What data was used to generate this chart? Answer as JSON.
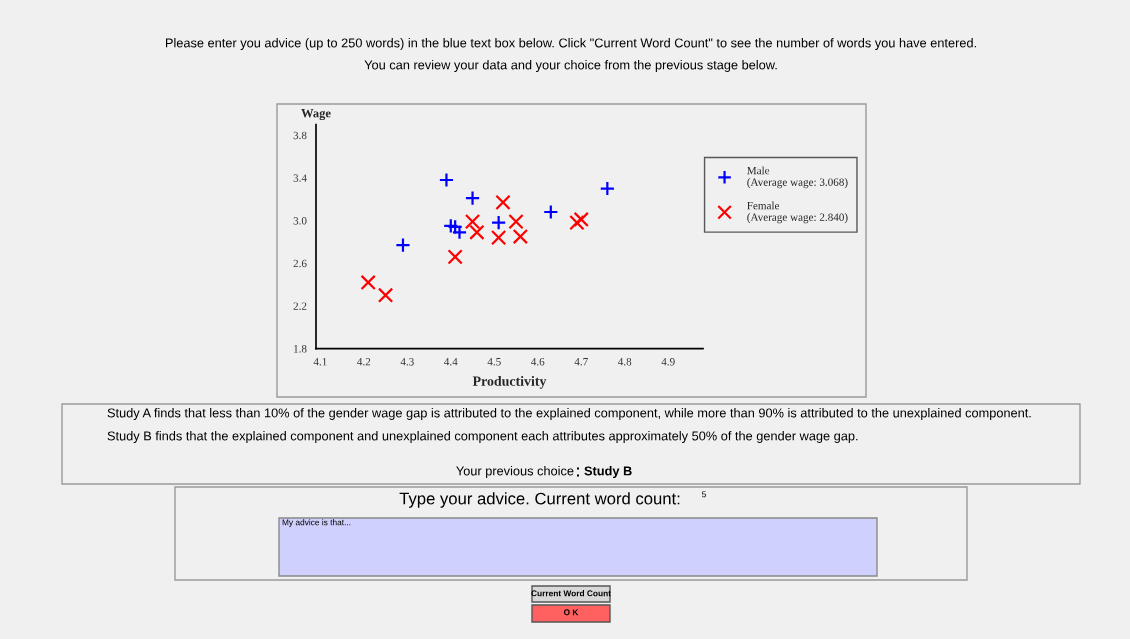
{
  "chart_data": {
    "type": "scatter",
    "xlabel": "Productivity",
    "ylabel": "Wage",
    "xlim": [
      4.09,
      4.98
    ],
    "ylim": [
      1.8,
      3.9
    ],
    "xticks": [
      4.1,
      4.2,
      4.3,
      4.4,
      4.5,
      4.6,
      4.7,
      4.8,
      4.9
    ],
    "yticks": [
      1.8,
      2.2,
      2.6,
      {
        "value": 3.0,
        "label": "3.0"
      },
      3.4,
      3.8
    ],
    "legend": "right",
    "series": [
      {
        "name": "Male\n(Average wage: 3.068)",
        "color": "#0000ff",
        "marker": "plus",
        "x": [
          4.29,
          4.39,
          4.4,
          4.41,
          4.42,
          4.45,
          4.51,
          4.63,
          4.76
        ],
        "values": [
          2.77,
          3.38,
          2.95,
          2.94,
          2.89,
          3.21,
          2.98,
          3.08,
          3.3
        ]
      },
      {
        "name": "Female\n(Average wage: 2.840)",
        "color": "#ff0000",
        "marker": "cross",
        "x": [
          4.21,
          4.25,
          4.41,
          4.45,
          4.46,
          4.51,
          4.52,
          4.55,
          4.56,
          4.69,
          4.7
        ],
        "values": [
          2.42,
          2.3,
          2.66,
          2.99,
          2.89,
          2.84,
          3.17,
          2.99,
          2.85,
          2.98,
          3.01
        ]
      }
    ],
    "annotations": [
      "Please enter you advice (up to 250 words) in the blue text box below. Click \"Current Word Count\" to see the number of words you have entered.",
      "You can review your data and your choice from the previous stage below.",
      "Study A finds that less than 10% of the gender wage gap is attributed to the explained component, while more than 90% is attributed to the unexplained component.",
      "Study B finds that the explained component and unexplained component each attributes approximately 50% of the gender wage gap.",
      "Your previous choice",
      "Study B",
      "Type your advice. Current word count:",
      "5",
      "My advice is that...",
      "Current Word Count",
      "O K"
    ]
  }
}
